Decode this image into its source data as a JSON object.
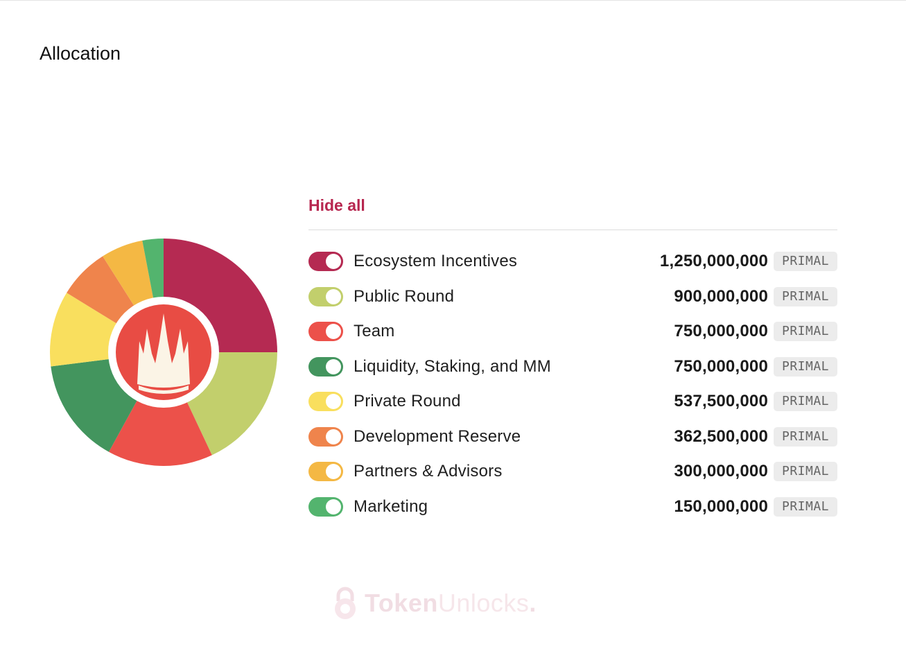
{
  "title": "Allocation",
  "legend": {
    "hide_all_label": "Hide all"
  },
  "watermark": {
    "part1": "Token",
    "part2": "Unlocks",
    "dot": "."
  },
  "chart_data": {
    "type": "pie",
    "donut": true,
    "unit": "PRIMAL",
    "categories": [
      "Ecosystem Incentives",
      "Public Round",
      "Team",
      "Liquidity, Staking, and MM",
      "Private Round",
      "Development Reserve",
      "Partners & Advisors",
      "Marketing"
    ],
    "values": [
      1250000000,
      900000000,
      750000000,
      750000000,
      537500000,
      362500000,
      300000000,
      150000000
    ],
    "value_labels": [
      "1,250,000,000",
      "900,000,000",
      "750,000,000",
      "750,000,000",
      "537,500,000",
      "362,500,000",
      "300,000,000",
      "150,000,000"
    ],
    "colors": [
      "#b52a52",
      "#c2cf6c",
      "#ec514a",
      "#43955e",
      "#f9df5e",
      "#ef844c",
      "#f4b844",
      "#53b46e"
    ],
    "center_logo_color": "#e84c44",
    "legend_placement": "right"
  }
}
